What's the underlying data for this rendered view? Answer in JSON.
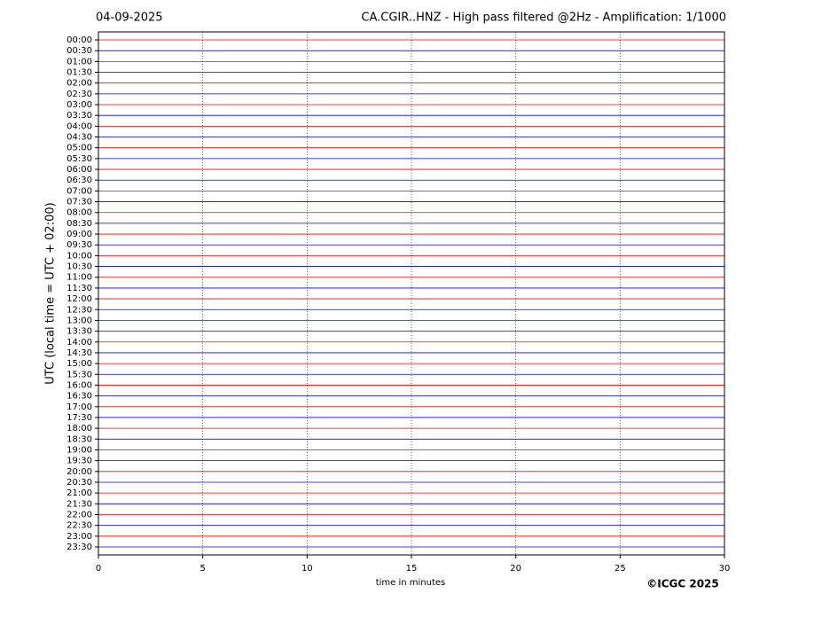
{
  "chart_data": {
    "type": "helicorder",
    "date": "04-09-2025",
    "title": "CA.CGIR..HNZ - High pass filtered @2Hz - Amplification: 1/1000",
    "ylabel": "UTC (local time = UTC + 02:00)",
    "xlabel": "time in minutes",
    "copyright": "©ICGC 2025",
    "xlim": [
      0,
      30
    ],
    "xticks": [
      0,
      5,
      10,
      15,
      20,
      25,
      30
    ],
    "grid": true,
    "categories": [
      "00:00",
      "00:30",
      "01:00",
      "01:30",
      "02:00",
      "02:30",
      "03:00",
      "03:30",
      "04:00",
      "04:30",
      "05:00",
      "05:30",
      "06:00",
      "06:30",
      "07:00",
      "07:30",
      "08:00",
      "08:30",
      "09:00",
      "09:30",
      "10:00",
      "10:30",
      "11:00",
      "11:30",
      "12:00",
      "12:30",
      "13:00",
      "13:30",
      "14:00",
      "14:30",
      "15:00",
      "15:30",
      "16:00",
      "16:30",
      "17:00",
      "17:30",
      "18:00",
      "18:30",
      "19:00",
      "19:30",
      "20:00",
      "20:30",
      "21:00",
      "21:30",
      "22:00",
      "22:30",
      "23:00",
      "23:30"
    ],
    "colors": [
      "#ff0000",
      "#0000ff"
    ]
  }
}
